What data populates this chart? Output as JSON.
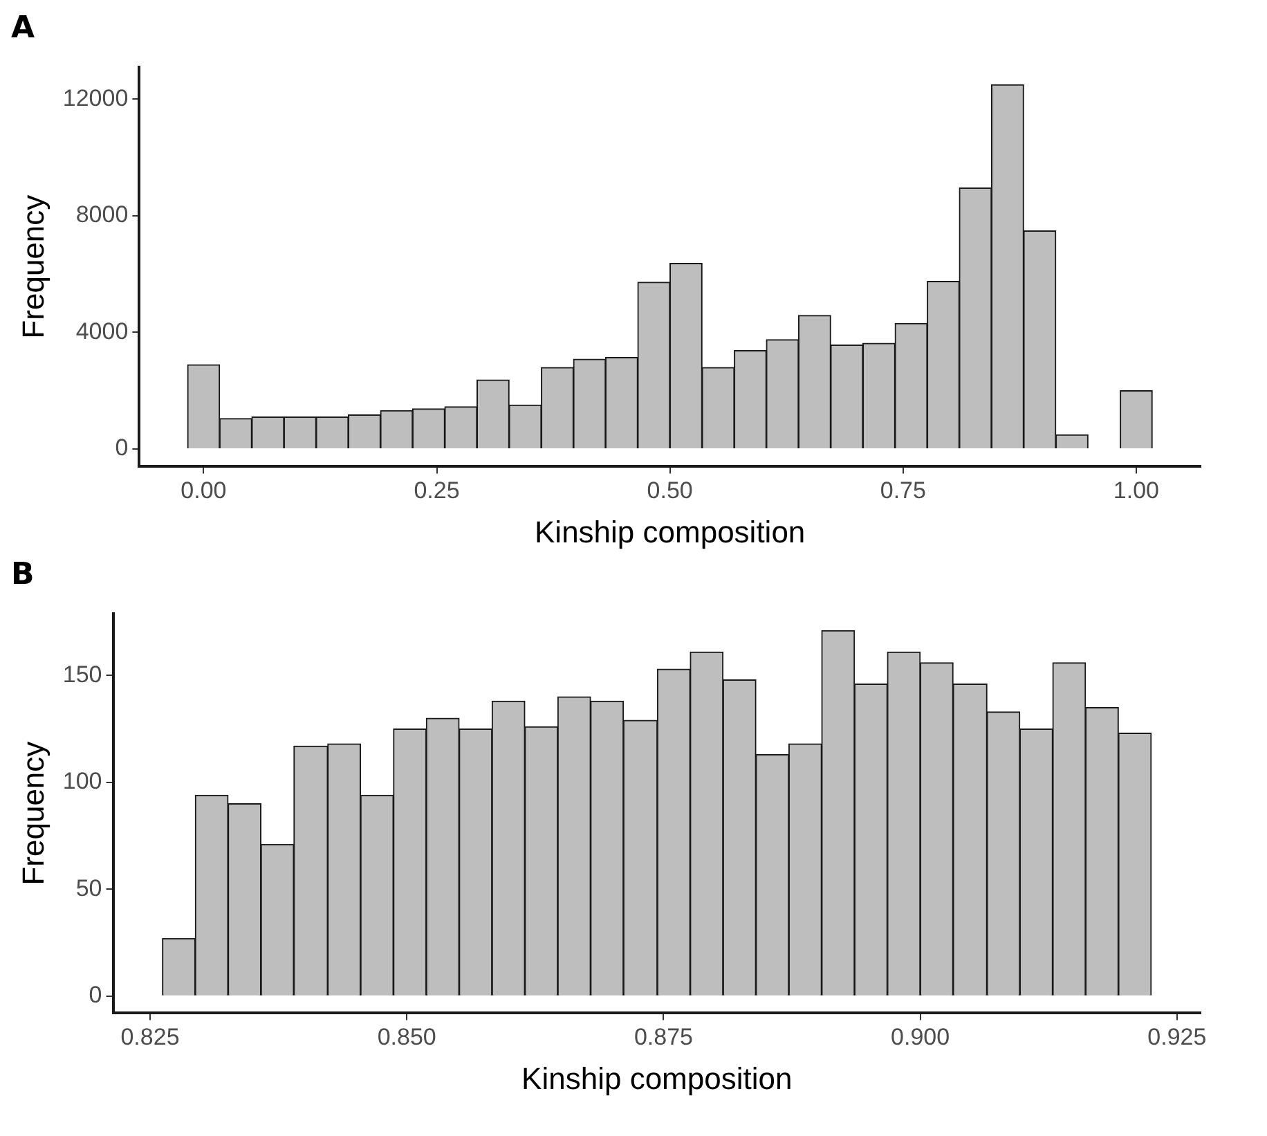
{
  "chart_data": [
    {
      "type": "histogram",
      "title": "A",
      "xlabel": "Kinship composition",
      "ylabel": "Frequency",
      "color": "#bebebe",
      "bins": [
        -0.0172,
        0.0172,
        0.0517,
        0.0862,
        0.1207,
        0.1552,
        0.1897,
        0.2241,
        0.2586,
        0.2931,
        0.3276,
        0.3621,
        0.3966,
        0.431,
        0.4655,
        0.5,
        0.5345,
        0.569,
        0.6034,
        0.6379,
        0.6724,
        0.7069,
        0.7414,
        0.7759,
        0.8103,
        0.8448,
        0.8793,
        0.9138,
        0.9483,
        0.9828,
        1.0172
      ],
      "values": [
        2890,
        1050,
        1100,
        1100,
        1100,
        1170,
        1320,
        1380,
        1450,
        2370,
        1510,
        2800,
        3080,
        3140,
        5720,
        6370,
        2800,
        3380,
        3750,
        4580,
        3570,
        3630,
        4310,
        5750,
        8950,
        12490,
        7480,
        490,
        0,
        2000
      ],
      "xlim": [
        -0.069,
        1.069
      ],
      "ylim": [
        -600,
        13100
      ],
      "xticks": [
        {
          "value": 0,
          "label": "0.00"
        },
        0.25,
        {
          "value": 0.5,
          "label": "0.50"
        },
        0.75,
        {
          "value": 1,
          "label": "1.00"
        }
      ],
      "yticks": [
        0,
        4000,
        8000,
        12000
      ],
      "grid": false,
      "legend": false
    },
    {
      "type": "histogram",
      "title": "B",
      "xlabel": "Kinship composition",
      "ylabel": "Frequency",
      "color": "#bebebe",
      "bins": [
        0.8262,
        0.8294,
        0.8326,
        0.8358,
        0.839,
        0.8423,
        0.8455,
        0.8487,
        0.8519,
        0.8551,
        0.8583,
        0.8615,
        0.8647,
        0.8679,
        0.8711,
        0.8744,
        0.8776,
        0.8808,
        0.884,
        0.8872,
        0.8904,
        0.8936,
        0.8968,
        0.9,
        0.9032,
        0.9065,
        0.9097,
        0.9129,
        0.9161,
        0.9193,
        0.9225
      ],
      "values": [
        27,
        94,
        90,
        71,
        117,
        118,
        94,
        125,
        130,
        125,
        138,
        126,
        140,
        138,
        129,
        153,
        161,
        148,
        113,
        118,
        171,
        146,
        161,
        156,
        146,
        133,
        125,
        156,
        135,
        123
      ],
      "xlim": [
        0.8214,
        0.9273
      ],
      "ylim": [
        -8,
        179
      ],
      "xticks": [
        0.825,
        {
          "value": 0.85,
          "label": "0.850"
        },
        0.875,
        {
          "value": 0.9,
          "label": "0.900"
        },
        0.925
      ],
      "yticks": [
        0,
        50,
        100,
        150
      ],
      "grid": false,
      "legend": false
    }
  ]
}
